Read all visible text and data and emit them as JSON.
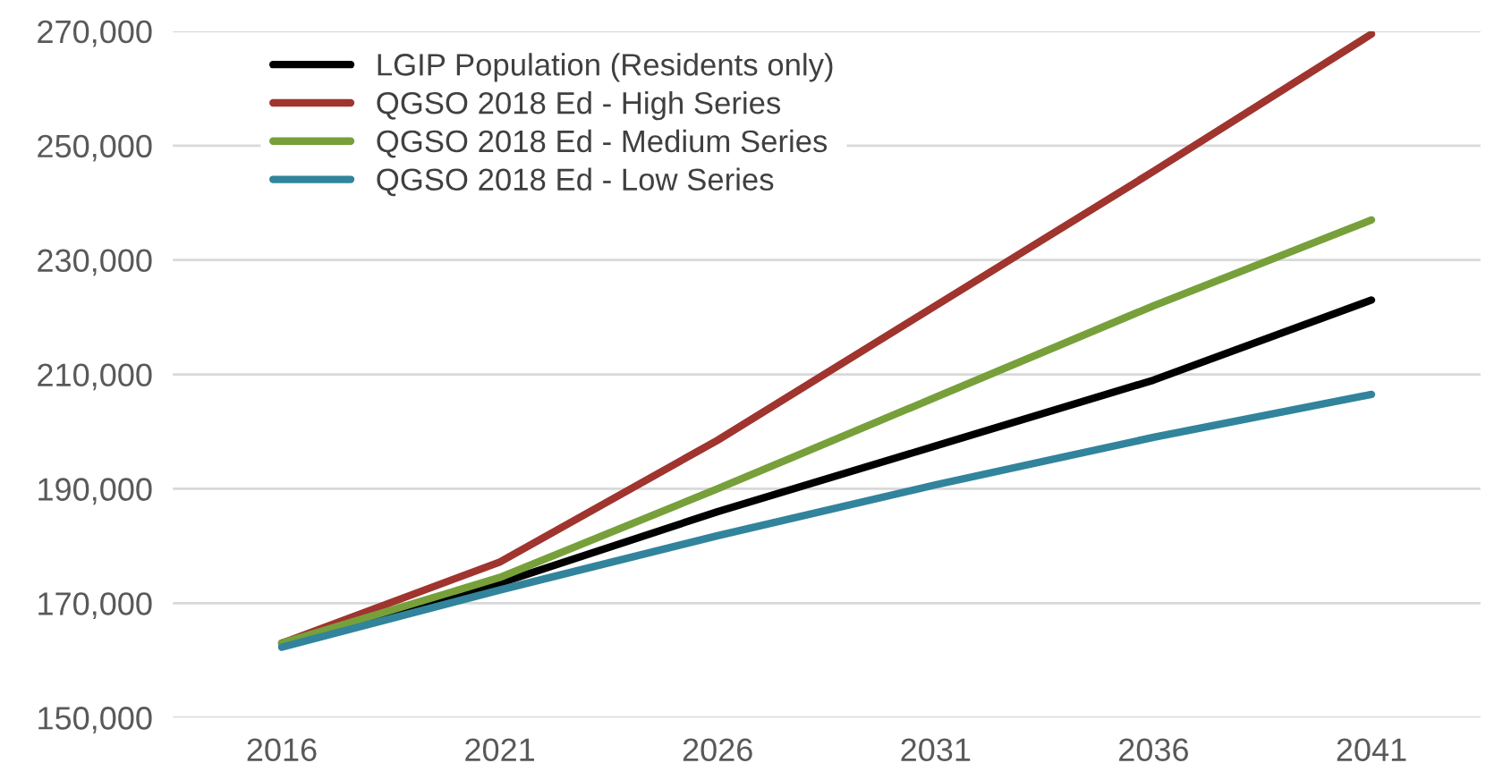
{
  "chart_data": {
    "type": "line",
    "categories": [
      "2016",
      "2021",
      "2026",
      "2031",
      "2036",
      "2041"
    ],
    "series": [
      {
        "name": "LGIP Population (Residents only)",
        "color": "#000000",
        "values": [
          163000,
          173500,
          186000,
          197500,
          209000,
          223000
        ]
      },
      {
        "name": "QGSO 2018 Ed - High Series",
        "color": "#a0342e",
        "values": [
          163000,
          177200,
          198500,
          222000,
          245500,
          269500
        ]
      },
      {
        "name": "QGSO 2018 Ed - Medium Series",
        "color": "#77a03a",
        "values": [
          163000,
          174500,
          190000,
          206000,
          222000,
          237000
        ]
      },
      {
        "name": "QGSO 2018 Ed - Low Series",
        "color": "#31849b",
        "values": [
          162300,
          172300,
          181800,
          190700,
          199000,
          206500
        ]
      }
    ],
    "ylim": [
      150000,
      270000
    ],
    "yticks": [
      {
        "value": 150000,
        "label": "150,000"
      },
      {
        "value": 170000,
        "label": "170,000"
      },
      {
        "value": 190000,
        "label": "190,000"
      },
      {
        "value": 210000,
        "label": "210,000"
      },
      {
        "value": 230000,
        "label": "230,000"
      },
      {
        "value": 250000,
        "label": "250,000"
      },
      {
        "value": 270000,
        "label": "270,000"
      }
    ],
    "grid": "y",
    "legend": "top left",
    "marker": "none",
    "line_style": "solid"
  }
}
